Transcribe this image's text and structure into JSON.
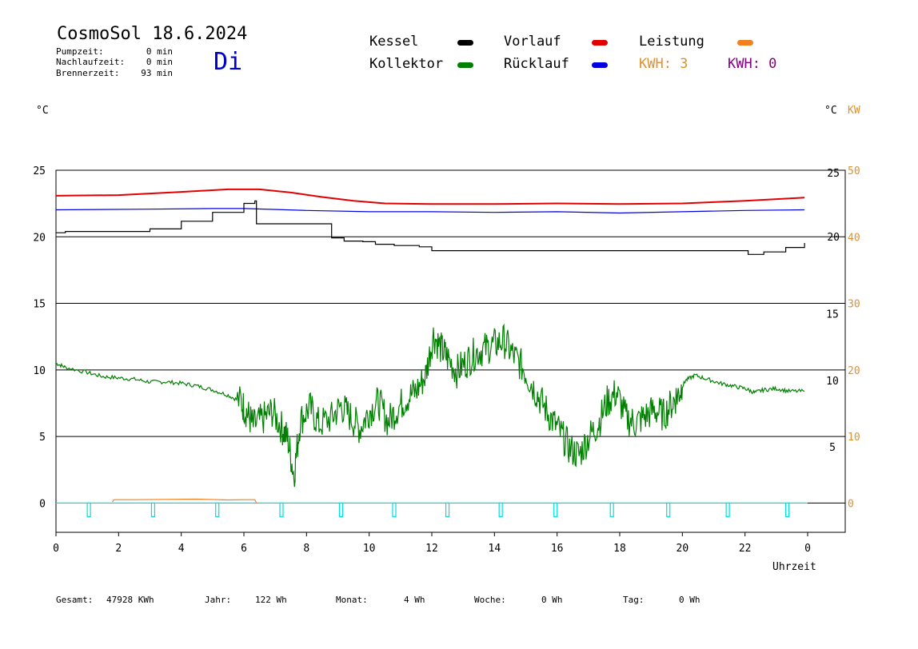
{
  "header": {
    "title": "CosmoSol 18.6.2024",
    "day": "Di",
    "pump_label": "Pumpzeit:",
    "pump_value": "0 min",
    "afterrun_label": "Nachlaufzeit:",
    "afterrun_value": "0 min",
    "burner_label": "Brennerzeit:",
    "burner_value": "93 min"
  },
  "legend": {
    "kessel": "Kessel",
    "vorlauf": "Vorlauf",
    "leistung": "Leistung",
    "kollektor": "Kollektor",
    "ruecklauf": "Rücklauf",
    "kwh1": "KWH: 3",
    "kwh2": "KWH: 0",
    "colors": {
      "kessel": "#000000",
      "vorlauf": "#e00000",
      "leistung": "#f08020",
      "kollektor": "#008000",
      "ruecklauf": "#0000e0",
      "kwh1": "#e09030",
      "kwh2": "#800080",
      "pump": "#00e0e0"
    }
  },
  "units": {
    "left": "°C",
    "right_c": "°C",
    "right_kw": "KW",
    "xlabel": "Uhrzeit"
  },
  "footer": {
    "gesamt_label": "Gesamt:",
    "gesamt_value": "47928 KWh",
    "jahr_label": "Jahr:",
    "jahr_value": "122 Wh",
    "monat_label": "Monat:",
    "monat_value": "4 Wh",
    "woche_label": "Woche:",
    "woche_value": "0 Wh",
    "tag_label": "Tag:",
    "tag_value": "0 Wh"
  },
  "chart_data": {
    "type": "line",
    "x_range": [
      0,
      24
    ],
    "x_ticks": [
      "0",
      "2",
      "4",
      "6",
      "8",
      "10",
      "12",
      "14",
      "16",
      "18",
      "20",
      "22",
      "0"
    ],
    "ylim_left": [
      -2.2,
      25
    ],
    "left_ticks": [
      "25",
      "20",
      "15",
      "10",
      "5",
      "0"
    ],
    "upper_right_ticks": [
      "25",
      "20"
    ],
    "lower_right_ticks": [
      "15",
      "10",
      "5"
    ],
    "kw_ticks": [
      "50",
      "40",
      "30",
      "20",
      "10",
      "0"
    ],
    "upper_panel_ylim": [
      15,
      25.5
    ],
    "series": [
      {
        "name": "Vorlauf",
        "color": "#e00000",
        "panel": "upper",
        "points": [
          [
            0,
            23.2
          ],
          [
            2,
            23.25
          ],
          [
            4,
            23.5
          ],
          [
            5.5,
            23.7
          ],
          [
            6.5,
            23.7
          ],
          [
            7.5,
            23.45
          ],
          [
            8.5,
            23.1
          ],
          [
            9.5,
            22.8
          ],
          [
            10.5,
            22.6
          ],
          [
            12,
            22.55
          ],
          [
            14,
            22.55
          ],
          [
            16,
            22.6
          ],
          [
            18,
            22.55
          ],
          [
            20,
            22.6
          ],
          [
            22,
            22.8
          ],
          [
            23.9,
            23.05
          ]
        ]
      },
      {
        "name": "Rücklauf",
        "color": "#0000e0",
        "panel": "upper",
        "points": [
          [
            0,
            22.1
          ],
          [
            3,
            22.15
          ],
          [
            5,
            22.2
          ],
          [
            6,
            22.2
          ],
          [
            8,
            22.05
          ],
          [
            10,
            21.95
          ],
          [
            12,
            21.95
          ],
          [
            14,
            21.9
          ],
          [
            16,
            21.95
          ],
          [
            18,
            21.85
          ],
          [
            20,
            21.95
          ],
          [
            22,
            22.05
          ],
          [
            23.9,
            22.1
          ]
        ]
      },
      {
        "name": "Kessel",
        "color": "#000000",
        "panel": "upper",
        "step": true,
        "points": [
          [
            0,
            20.3
          ],
          [
            0.3,
            20.4
          ],
          [
            2.5,
            20.4
          ],
          [
            3,
            20.6
          ],
          [
            4,
            21.2
          ],
          [
            5,
            21.9
          ],
          [
            6,
            22.6
          ],
          [
            6.35,
            22.8
          ],
          [
            6.4,
            21.0
          ],
          [
            8.6,
            21.0
          ],
          [
            8.8,
            19.9
          ],
          [
            9.2,
            19.65
          ],
          [
            9.8,
            19.6
          ],
          [
            10.2,
            19.4
          ],
          [
            10.8,
            19.3
          ],
          [
            11.6,
            19.2
          ],
          [
            12,
            18.9
          ],
          [
            14,
            18.9
          ],
          [
            16,
            18.9
          ],
          [
            18,
            18.9
          ],
          [
            20,
            18.9
          ],
          [
            21.9,
            18.9
          ],
          [
            22.1,
            18.6
          ],
          [
            22.6,
            18.8
          ],
          [
            23.3,
            19.15
          ],
          [
            23.9,
            19.5
          ]
        ]
      },
      {
        "name": "Kollektor",
        "color": "#008000",
        "panel": "lower",
        "points": [
          [
            0,
            10.5
          ],
          [
            0.3,
            10.2
          ],
          [
            1,
            9.8
          ],
          [
            1.5,
            9.5
          ],
          [
            2,
            9.4
          ],
          [
            2.5,
            9.3
          ],
          [
            3,
            9.1
          ],
          [
            3.5,
            9.1
          ],
          [
            4,
            9.0
          ],
          [
            4.5,
            8.8
          ],
          [
            5,
            8.5
          ],
          [
            5.5,
            8.1
          ],
          [
            5.9,
            7.6
          ],
          [
            6.1,
            6.8
          ],
          [
            6.3,
            5.8
          ],
          [
            6.6,
            6.3
          ],
          [
            6.9,
            6.9
          ],
          [
            7.2,
            5.7
          ],
          [
            7.4,
            4.8
          ],
          [
            7.6,
            2.1
          ],
          [
            7.8,
            6.2
          ],
          [
            8.1,
            7.2
          ],
          [
            8.4,
            5.9
          ],
          [
            8.8,
            6.4
          ],
          [
            9.1,
            7.3
          ],
          [
            9.4,
            6.5
          ],
          [
            9.7,
            5.6
          ],
          [
            10,
            6.9
          ],
          [
            10.3,
            7.6
          ],
          [
            10.6,
            6.1
          ],
          [
            10.9,
            7.1
          ],
          [
            11.2,
            7.9
          ],
          [
            11.5,
            8.4
          ],
          [
            11.8,
            9.6
          ],
          [
            12.05,
            12.6
          ],
          [
            12.3,
            11.6
          ],
          [
            12.5,
            10.9
          ],
          [
            12.8,
            9.9
          ],
          [
            13.1,
            10.6
          ],
          [
            13.4,
            11.3
          ],
          [
            13.7,
            11.6
          ],
          [
            14,
            11.9
          ],
          [
            14.3,
            12.2
          ],
          [
            14.6,
            11.1
          ],
          [
            14.9,
            10.2
          ],
          [
            15.2,
            8.9
          ],
          [
            15.5,
            7.6
          ],
          [
            15.8,
            6.4
          ],
          [
            16.1,
            5.3
          ],
          [
            16.4,
            4.1
          ],
          [
            16.7,
            3.6
          ],
          [
            17,
            4.9
          ],
          [
            17.3,
            5.9
          ],
          [
            17.6,
            7.6
          ],
          [
            17.9,
            8.3
          ],
          [
            18.2,
            6.4
          ],
          [
            18.5,
            6.0
          ],
          [
            18.8,
            6.5
          ],
          [
            19.1,
            7.0
          ],
          [
            19.4,
            6.6
          ],
          [
            19.7,
            7.6
          ],
          [
            19.9,
            8.3
          ],
          [
            20.1,
            9.2
          ],
          [
            20.4,
            9.6
          ],
          [
            20.8,
            9.3
          ],
          [
            21.2,
            9.0
          ],
          [
            21.6,
            8.8
          ],
          [
            22,
            8.6
          ],
          [
            22.3,
            8.3
          ],
          [
            22.6,
            8.5
          ],
          [
            23,
            8.6
          ],
          [
            23.4,
            8.4
          ],
          [
            23.9,
            8.4
          ]
        ]
      },
      {
        "name": "Leistung",
        "color": "#f08020",
        "panel": "lower",
        "axis": "kw",
        "points": [
          [
            1.8,
            0.2
          ],
          [
            1.85,
            0.6
          ],
          [
            2.5,
            0.6
          ],
          [
            3.5,
            0.65
          ],
          [
            4.5,
            0.7
          ],
          [
            5.5,
            0.55
          ],
          [
            6,
            0.6
          ],
          [
            6.35,
            0.6
          ],
          [
            6.4,
            0.0
          ]
        ]
      }
    ],
    "pump_pulses": [
      1.05,
      3.1,
      5.15,
      7.2,
      9.1,
      10.8,
      12.5,
      14.2,
      15.95,
      17.75,
      19.55,
      21.45,
      23.35
    ],
    "pump_color": "#00e0e0",
    "grid": true
  }
}
